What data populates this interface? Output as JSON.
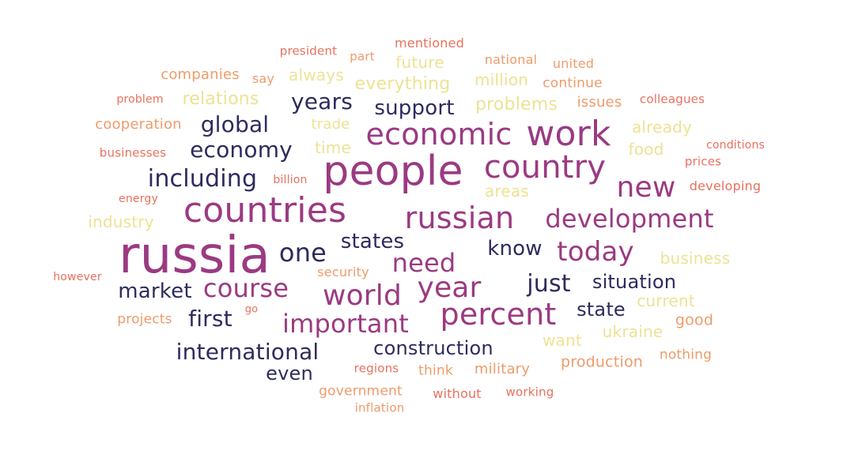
{
  "palette": {
    "c1": "#2e2b5e",
    "c2": "#9b3a82",
    "c3": "#ede294",
    "c4": "#ee9b6a",
    "c5": "#e9705e"
  },
  "words": [
    {
      "text": "russia",
      "color": "c2"
    },
    {
      "text": "people",
      "color": "c2"
    },
    {
      "text": "countries",
      "color": "c2"
    },
    {
      "text": "country",
      "color": "c2"
    },
    {
      "text": "work",
      "color": "c2"
    },
    {
      "text": "economic",
      "color": "c2"
    },
    {
      "text": "russian",
      "color": "c2"
    },
    {
      "text": "development",
      "color": "c2"
    },
    {
      "text": "percent",
      "color": "c2"
    },
    {
      "text": "year",
      "color": "c2"
    },
    {
      "text": "world",
      "color": "c2"
    },
    {
      "text": "important",
      "color": "c2"
    },
    {
      "text": "course",
      "color": "c2"
    },
    {
      "text": "new",
      "color": "c2"
    },
    {
      "text": "today",
      "color": "c2"
    },
    {
      "text": "need",
      "color": "c2"
    },
    {
      "text": "international",
      "color": "c1"
    },
    {
      "text": "including",
      "color": "c1"
    },
    {
      "text": "economy",
      "color": "c1"
    },
    {
      "text": "global",
      "color": "c1"
    },
    {
      "text": "years",
      "color": "c1"
    },
    {
      "text": "support",
      "color": "c1"
    },
    {
      "text": "one",
      "color": "c1"
    },
    {
      "text": "states",
      "color": "c1"
    },
    {
      "text": "know",
      "color": "c1"
    },
    {
      "text": "just",
      "color": "c1"
    },
    {
      "text": "situation",
      "color": "c1"
    },
    {
      "text": "market",
      "color": "c1"
    },
    {
      "text": "first",
      "color": "c1"
    },
    {
      "text": "state",
      "color": "c1"
    },
    {
      "text": "construction",
      "color": "c1"
    },
    {
      "text": "even",
      "color": "c1"
    },
    {
      "text": "relations",
      "color": "c3"
    },
    {
      "text": "everything",
      "color": "c3"
    },
    {
      "text": "problems",
      "color": "c3"
    },
    {
      "text": "million",
      "color": "c3"
    },
    {
      "text": "future",
      "color": "c3"
    },
    {
      "text": "always",
      "color": "c3"
    },
    {
      "text": "trade",
      "color": "c3"
    },
    {
      "text": "time",
      "color": "c3"
    },
    {
      "text": "already",
      "color": "c3"
    },
    {
      "text": "food",
      "color": "c3"
    },
    {
      "text": "areas",
      "color": "c3"
    },
    {
      "text": "industry",
      "color": "c3"
    },
    {
      "text": "business",
      "color": "c3"
    },
    {
      "text": "current",
      "color": "c3"
    },
    {
      "text": "ukraine",
      "color": "c3"
    },
    {
      "text": "want",
      "color": "c3"
    },
    {
      "text": "companies",
      "color": "c4"
    },
    {
      "text": "cooperation",
      "color": "c4"
    },
    {
      "text": "say",
      "color": "c4"
    },
    {
      "text": "part",
      "color": "c4"
    },
    {
      "text": "national",
      "color": "c4"
    },
    {
      "text": "united",
      "color": "c4"
    },
    {
      "text": "continue",
      "color": "c4"
    },
    {
      "text": "issues",
      "color": "c4"
    },
    {
      "text": "security",
      "color": "c4"
    },
    {
      "text": "projects",
      "color": "c4"
    },
    {
      "text": "good",
      "color": "c4"
    },
    {
      "text": "production",
      "color": "c4"
    },
    {
      "text": "nothing",
      "color": "c4"
    },
    {
      "text": "military",
      "color": "c4"
    },
    {
      "text": "think",
      "color": "c4"
    },
    {
      "text": "government",
      "color": "c4"
    },
    {
      "text": "inflation",
      "color": "c4"
    },
    {
      "text": "mentioned",
      "color": "c5"
    },
    {
      "text": "president",
      "color": "c5"
    },
    {
      "text": "problem",
      "color": "c5"
    },
    {
      "text": "colleagues",
      "color": "c5"
    },
    {
      "text": "businesses",
      "color": "c5"
    },
    {
      "text": "conditions",
      "color": "c5"
    },
    {
      "text": "prices",
      "color": "c5"
    },
    {
      "text": "billion",
      "color": "c5"
    },
    {
      "text": "energy",
      "color": "c5"
    },
    {
      "text": "developing",
      "color": "c5"
    },
    {
      "text": "however",
      "color": "c5"
    },
    {
      "text": "go",
      "color": "c5"
    },
    {
      "text": "regions",
      "color": "c5"
    },
    {
      "text": "without",
      "color": "c5"
    },
    {
      "text": "working",
      "color": "c5"
    }
  ]
}
